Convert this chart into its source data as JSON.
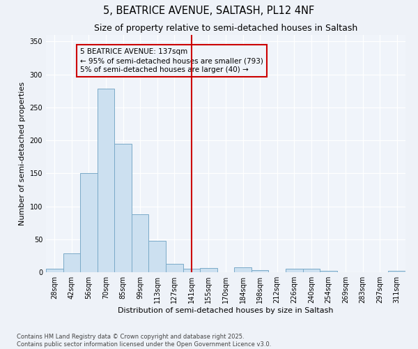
{
  "title1": "5, BEATRICE AVENUE, SALTASH, PL12 4NF",
  "title2": "Size of property relative to semi-detached houses in Saltash",
  "xlabel": "Distribution of semi-detached houses by size in Saltash",
  "ylabel": "Number of semi-detached properties",
  "categories": [
    "28sqm",
    "42sqm",
    "56sqm",
    "70sqm",
    "85sqm",
    "99sqm",
    "113sqm",
    "127sqm",
    "141sqm",
    "155sqm",
    "170sqm",
    "184sqm",
    "198sqm",
    "212sqm",
    "226sqm",
    "240sqm",
    "254sqm",
    "269sqm",
    "283sqm",
    "297sqm",
    "311sqm"
  ],
  "values": [
    5,
    29,
    150,
    278,
    195,
    88,
    48,
    13,
    5,
    6,
    0,
    7,
    3,
    0,
    5,
    5,
    2,
    0,
    0,
    0,
    2
  ],
  "bar_color": "#cce0f0",
  "bar_edge_color": "#7aaac8",
  "vline_x_idx": 8,
  "vline_color": "#cc0000",
  "annotation_text": "5 BEATRICE AVENUE: 137sqm\n← 95% of semi-detached houses are smaller (793)\n5% of semi-detached houses are larger (40) →",
  "annotation_box_color": "#cc0000",
  "annotation_fontsize": 7.5,
  "ylim": [
    0,
    360
  ],
  "yticks": [
    0,
    50,
    100,
    150,
    200,
    250,
    300,
    350
  ],
  "background_color": "#eef2f8",
  "plot_bg_color": "#f0f4fa",
  "footer_text": "Contains HM Land Registry data © Crown copyright and database right 2025.\nContains public sector information licensed under the Open Government Licence v3.0.",
  "title_fontsize": 10.5,
  "subtitle_fontsize": 9,
  "axis_label_fontsize": 8,
  "tick_fontsize": 7,
  "footer_fontsize": 6
}
